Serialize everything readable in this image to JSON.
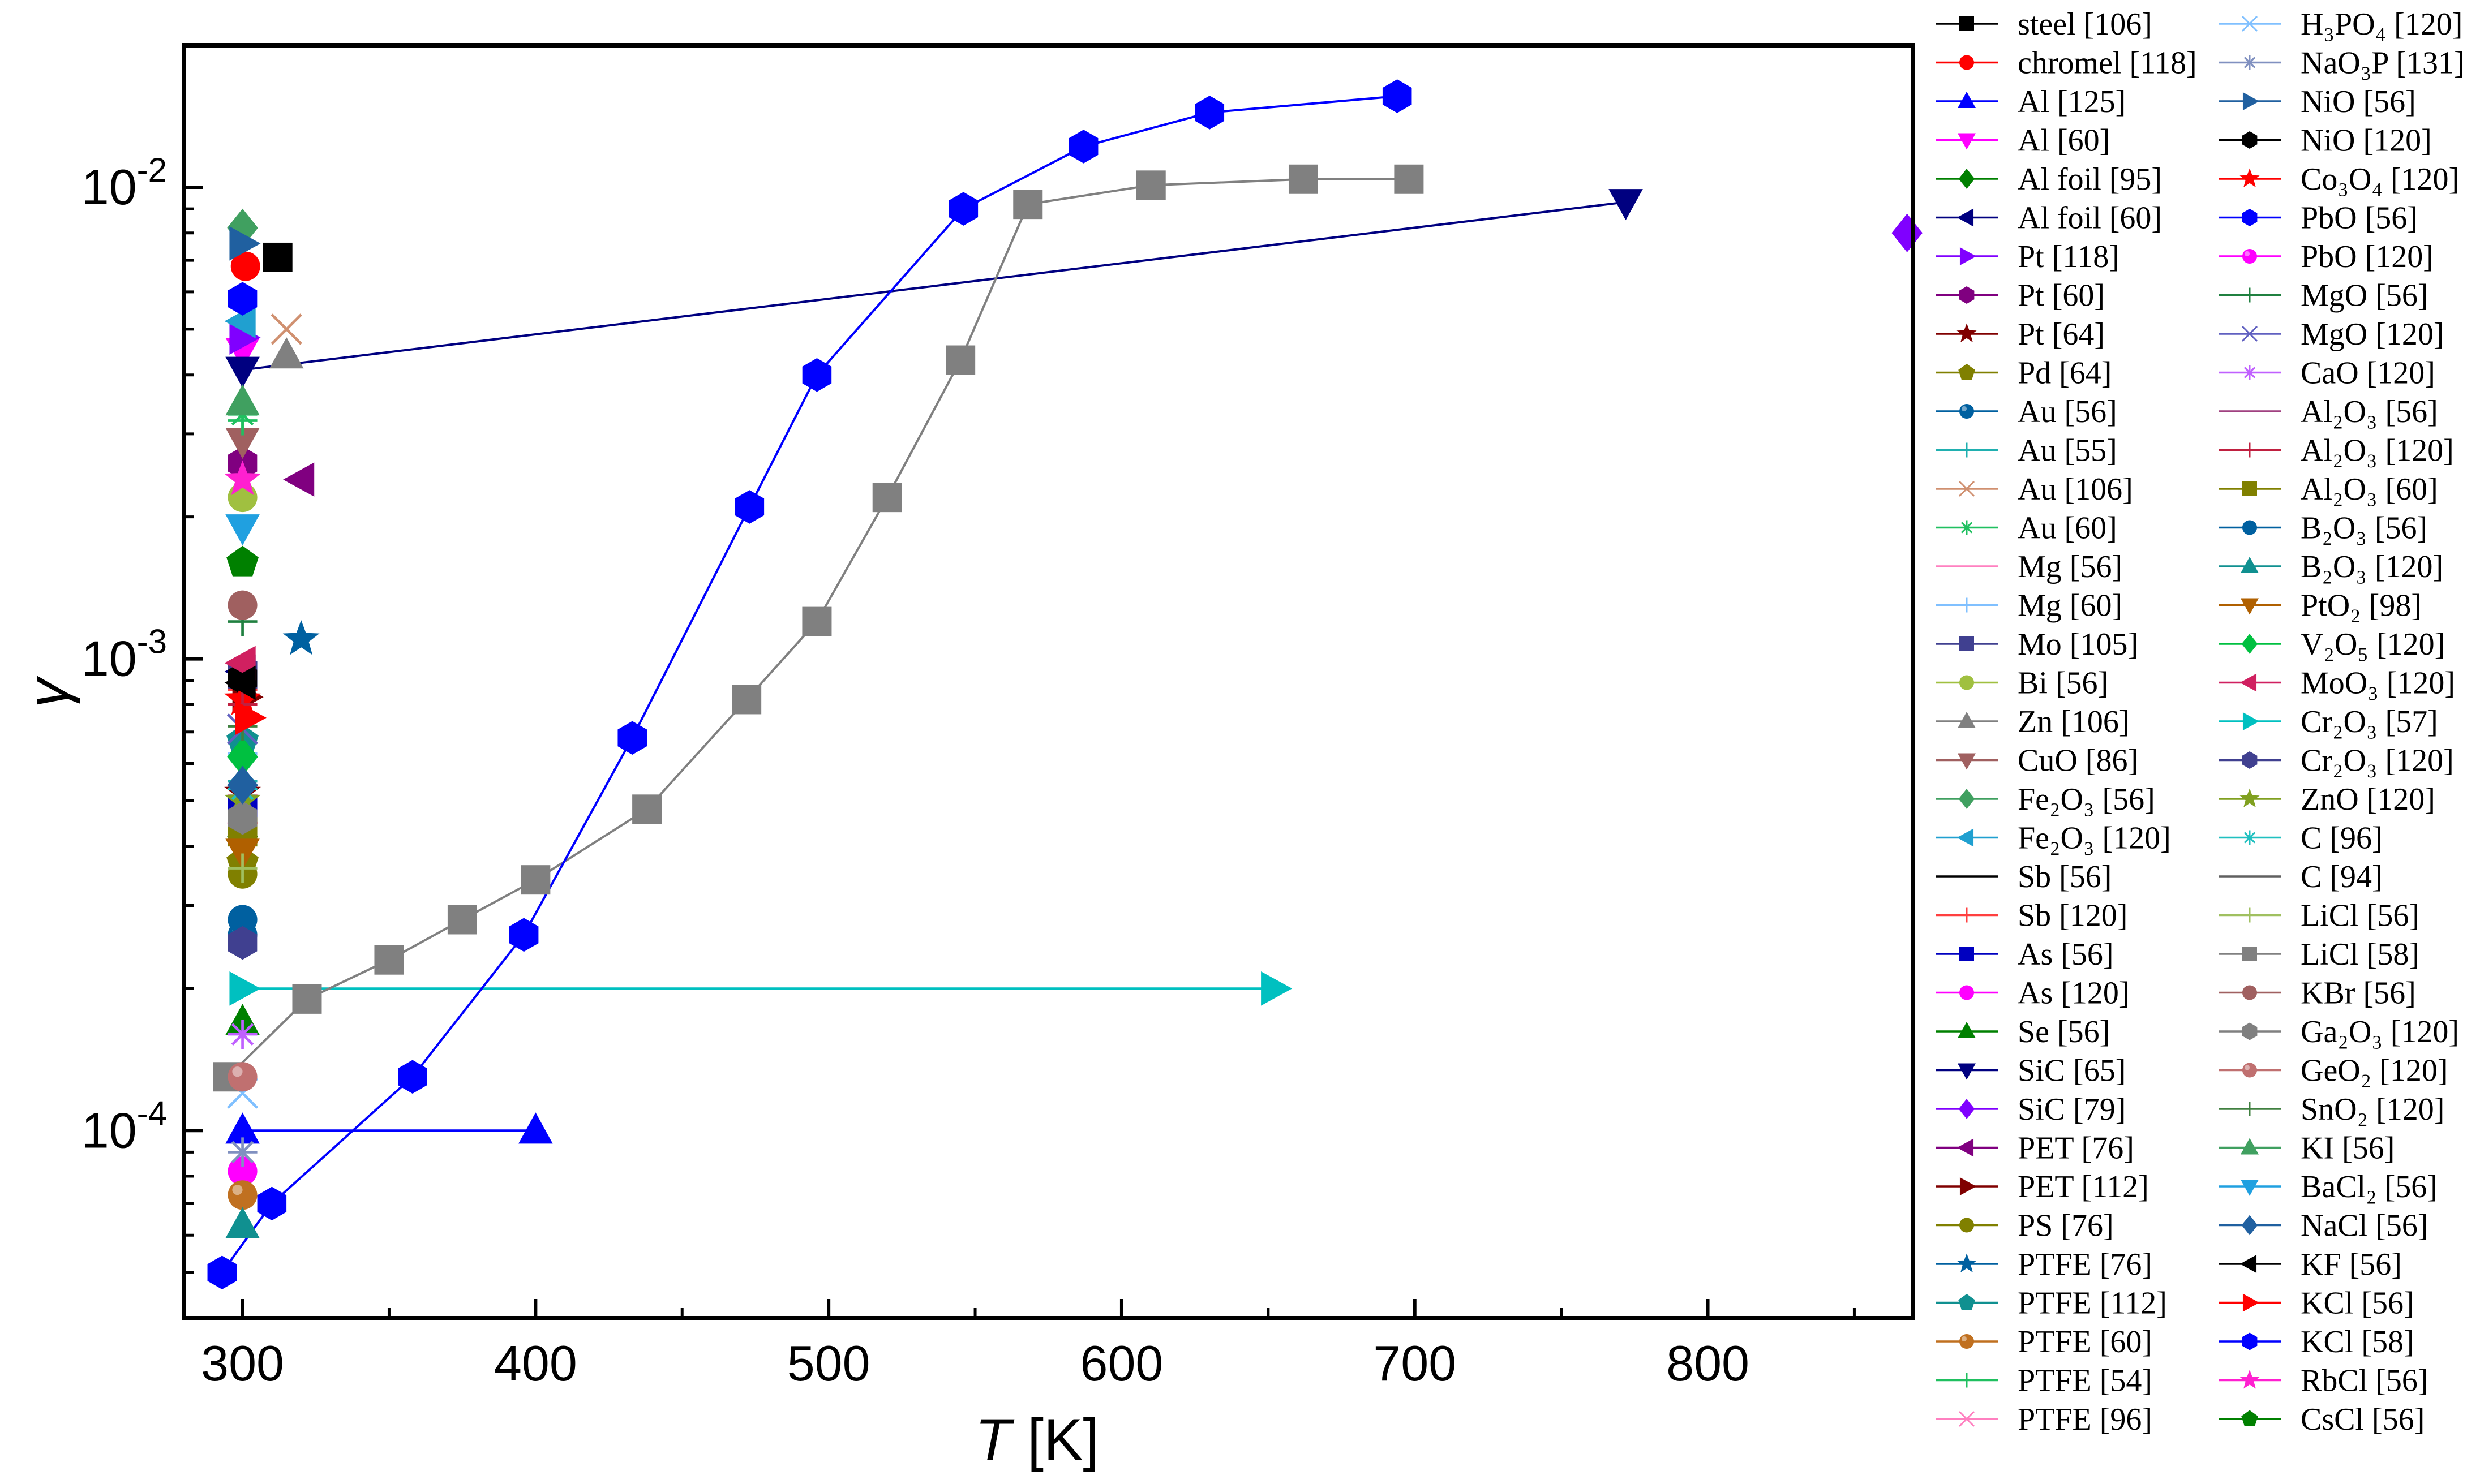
{
  "chart_data": {
    "type": "scatter",
    "title": "",
    "xlabel": "T",
    "xlabel_unit": "[K]",
    "ylabel": "γ",
    "xlim": [
      280,
      870
    ],
    "ylim": [
      4e-05,
      0.02
    ],
    "yscale": "log",
    "x_ticks": [
      300,
      400,
      500,
      600,
      700,
      800
    ],
    "x_tick_labels": [
      "300",
      "400",
      "500",
      "600",
      "700",
      "800"
    ],
    "y_ticks": [
      0.0001,
      0.001,
      0.01
    ],
    "y_tick_labels": [
      {
        "base": "10",
        "exp": "-4"
      },
      {
        "base": "10",
        "exp": "-3"
      },
      {
        "base": "10",
        "exp": "-2"
      }
    ],
    "legend": {
      "placement": "outside-right",
      "columns": 2
    },
    "series": [
      {
        "name": "steel",
        "ref": "[106]",
        "color": "#000000",
        "marker": "square",
        "line": true,
        "points": [
          [
            312,
            0.0071
          ]
        ]
      },
      {
        "name": "chromel",
        "ref": "[118]",
        "color": "#ff0000",
        "marker": "circle",
        "line": true,
        "points": [
          [
            301,
            0.0068
          ]
        ]
      },
      {
        "name": "Al",
        "ref": "[125]",
        "color": "#0000ff",
        "marker": "triangle-up",
        "line": true,
        "points": [
          [
            300,
            0.0001
          ],
          [
            400,
            0.0001
          ]
        ]
      },
      {
        "name": "Al",
        "ref": "[60]",
        "color": "#ff00ff",
        "marker": "triangle-down",
        "line": true,
        "points": [
          [
            300,
            0.0045
          ]
        ]
      },
      {
        "name": "Al foil",
        "ref": "[95]",
        "color": "#008000",
        "marker": "diamond",
        "line": true,
        "points": [
          [
            300,
            0.00042
          ]
        ]
      },
      {
        "name": "Al foil",
        "ref": "[60]",
        "color": "#000080",
        "marker": "triangle-left",
        "line": true,
        "points": [
          [
            300,
            0.00094
          ]
        ]
      },
      {
        "name": "Pt",
        "ref": "[118]",
        "color": "#8000ff",
        "marker": "triangle-right",
        "line": true,
        "points": [
          [
            300,
            0.0048
          ]
        ]
      },
      {
        "name": "Pt",
        "ref": "[60]",
        "color": "#800080",
        "marker": "hexagon",
        "line": true,
        "points": [
          [
            300,
            0.0026
          ]
        ]
      },
      {
        "name": "Pt",
        "ref": "[64]",
        "color": "#800000",
        "marker": "star",
        "line": true,
        "points": [
          [
            300,
            0.00052
          ]
        ]
      },
      {
        "name": "Pd",
        "ref": "[64]",
        "color": "#808000",
        "marker": "pentagon",
        "line": true,
        "points": [
          [
            300,
            0.00037
          ]
        ]
      },
      {
        "name": "Au",
        "ref": "[56]",
        "color": "#0060a0",
        "marker": "sphere",
        "line": true,
        "points": [
          [
            300,
            0.00026
          ]
        ]
      },
      {
        "name": "Au",
        "ref": "[55]",
        "color": "#20b0b0",
        "marker": "plus",
        "line": true,
        "points": [
          [
            300,
            0.00055
          ]
        ]
      },
      {
        "name": "Au",
        "ref": "[106]",
        "color": "#d09070",
        "marker": "cross",
        "line": true,
        "points": [
          [
            315,
            0.005
          ]
        ]
      },
      {
        "name": "Au",
        "ref": "[60]",
        "color": "#20c060",
        "marker": "asterisk",
        "line": true,
        "points": [
          [
            300,
            0.0033
          ]
        ]
      },
      {
        "name": "Mg",
        "ref": "[56]",
        "color": "#ff80c0",
        "marker": "none",
        "line": true,
        "points": [
          [
            300,
            0.00058
          ]
        ]
      },
      {
        "name": "Mg",
        "ref": "[60]",
        "color": "#80c0ff",
        "marker": "plus",
        "line": true,
        "points": [
          [
            300,
            0.00063
          ]
        ]
      },
      {
        "name": "Mo",
        "ref": "[105]",
        "color": "#404090",
        "marker": "square",
        "line": true,
        "points": [
          [
            300,
            0.00092
          ]
        ]
      },
      {
        "name": "Bi",
        "ref": "[56]",
        "color": "#a0c040",
        "marker": "circle",
        "line": true,
        "points": [
          [
            300,
            0.0022
          ]
        ]
      },
      {
        "name": "Zn",
        "ref": "[106]",
        "color": "#808080",
        "marker": "triangle-up",
        "line": true,
        "points": [
          [
            315,
            0.0044
          ]
        ]
      },
      {
        "name": "CuO",
        "ref": "[86]",
        "color": "#a06060",
        "marker": "triangle-down",
        "line": true,
        "points": [
          [
            300,
            0.0029
          ]
        ]
      },
      {
        "name": "Fe₂O₃",
        "ref": "[56]",
        "color": "#40a060",
        "marker": "diamond",
        "line": true,
        "points": [
          [
            300,
            0.0082
          ]
        ]
      },
      {
        "name": "Fe₂O₃",
        "ref": "[120]",
        "color": "#20a0d0",
        "marker": "triangle-left",
        "line": true,
        "points": [
          [
            300,
            0.0052
          ]
        ]
      },
      {
        "name": "Sb",
        "ref": "[56]",
        "color": "#000000",
        "marker": "none",
        "line": true,
        "points": [
          [
            300,
            0.00088
          ]
        ]
      },
      {
        "name": "Sb",
        "ref": "[120]",
        "color": "#ff4040",
        "marker": "plus",
        "line": true,
        "points": [
          [
            300,
            0.00086
          ]
        ]
      },
      {
        "name": "As",
        "ref": "[56]",
        "color": "#0000c0",
        "marker": "square",
        "line": true,
        "points": [
          [
            300,
            0.00048
          ]
        ]
      },
      {
        "name": "As",
        "ref": "[120]",
        "color": "#ff00ff",
        "marker": "circle",
        "line": true,
        "points": [
          [
            300,
            8.2e-05
          ]
        ]
      },
      {
        "name": "Se",
        "ref": "[56]",
        "color": "#008000",
        "marker": "triangle-up",
        "line": true,
        "points": [
          [
            300,
            0.00017
          ]
        ]
      },
      {
        "name": "SiC",
        "ref": "[65]",
        "color": "#000080",
        "marker": "triangle-down",
        "line": true,
        "points": [
          [
            300,
            0.0041
          ],
          [
            772,
            0.0093
          ]
        ]
      },
      {
        "name": "SiC",
        "ref": "[79]",
        "color": "#8000ff",
        "marker": "diamond",
        "line": true,
        "points": [
          [
            868,
            0.008
          ]
        ]
      },
      {
        "name": "PET",
        "ref": "[76]",
        "color": "#800080",
        "marker": "triangle-left",
        "line": true,
        "points": [
          [
            320,
            0.0024
          ]
        ]
      },
      {
        "name": "PET",
        "ref": "[112]",
        "color": "#800000",
        "marker": "triangle-right",
        "line": true,
        "points": [
          [
            301,
            0.00083
          ]
        ]
      },
      {
        "name": "PS",
        "ref": "[76]",
        "color": "#808000",
        "marker": "circle",
        "line": true,
        "points": [
          [
            300,
            0.00035
          ]
        ]
      },
      {
        "name": "PTFE",
        "ref": "[76]",
        "color": "#0060a0",
        "marker": "star",
        "line": true,
        "points": [
          [
            320,
            0.0011
          ]
        ]
      },
      {
        "name": "PTFE",
        "ref": "[112]",
        "color": "#109090",
        "marker": "pentagon",
        "line": true,
        "points": [
          [
            300,
            0.00067
          ]
        ]
      },
      {
        "name": "PTFE",
        "ref": "[60]",
        "color": "#c07020",
        "marker": "sphere",
        "line": true,
        "points": [
          [
            300,
            7.3e-05
          ]
        ]
      },
      {
        "name": "PTFE",
        "ref": "[54]",
        "color": "#20c060",
        "marker": "plus",
        "line": true,
        "points": [
          [
            300,
            0.0032
          ]
        ]
      },
      {
        "name": "PTFE",
        "ref": "[96]",
        "color": "#ff80c0",
        "marker": "cross",
        "line": true,
        "points": [
          [
            300,
            0.00048
          ]
        ]
      },
      {
        "name": "H₃PO₄",
        "ref": "[120]",
        "color": "#80c0ff",
        "marker": "cross",
        "line": true,
        "points": [
          [
            300,
            0.00012
          ]
        ]
      },
      {
        "name": "NaO₃P",
        "ref": "[131]",
        "color": "#8090c0",
        "marker": "asterisk",
        "line": true,
        "points": [
          [
            300,
            9e-05
          ]
        ]
      },
      {
        "name": "NiO",
        "ref": "[56]",
        "color": "#2060a0",
        "marker": "triangle-right",
        "line": true,
        "points": [
          [
            300,
            0.0076
          ]
        ]
      },
      {
        "name": "NiO",
        "ref": "[120]",
        "color": "#000000",
        "marker": "hexagon",
        "line": true,
        "points": [
          [
            300,
            0.00091
          ]
        ]
      },
      {
        "name": "Co₃O₄",
        "ref": "[120]",
        "color": "#ff0000",
        "marker": "star",
        "line": true,
        "points": [
          [
            300,
            0.00082
          ]
        ]
      },
      {
        "name": "PbO",
        "ref": "[56]",
        "color": "#0000ff",
        "marker": "hexagon",
        "line": true,
        "points": [
          [
            300,
            0.0058
          ]
        ]
      },
      {
        "name": "PbO",
        "ref": "[120]",
        "color": "#ff00ff",
        "marker": "sphere",
        "line": true,
        "points": [
          [
            300,
            0.00045
          ]
        ]
      },
      {
        "name": "MgO",
        "ref": "[56]",
        "color": "#208040",
        "marker": "plus",
        "line": true,
        "points": [
          [
            300,
            0.0012
          ]
        ]
      },
      {
        "name": "MgO",
        "ref": "[120]",
        "color": "#6060c0",
        "marker": "cross",
        "line": true,
        "points": [
          [
            300,
            0.00071
          ]
        ]
      },
      {
        "name": "CaO",
        "ref": "[120]",
        "color": "#c060ff",
        "marker": "asterisk",
        "line": true,
        "points": [
          [
            300,
            0.00016
          ]
        ]
      },
      {
        "name": "Al₂O₃",
        "ref": "[56]",
        "color": "#a04080",
        "marker": "none",
        "line": true,
        "points": [
          [
            300,
            0.00075
          ]
        ]
      },
      {
        "name": "Al₂O₃",
        "ref": "[120]",
        "color": "#c02040",
        "marker": "plus",
        "line": true,
        "points": [
          [
            300,
            0.0008
          ]
        ]
      },
      {
        "name": "Al₂O₃",
        "ref": "[60]",
        "color": "#808000",
        "marker": "square",
        "line": true,
        "points": [
          [
            300,
            0.00043
          ]
        ]
      },
      {
        "name": "B₂O₃",
        "ref": "[56]",
        "color": "#0060a0",
        "marker": "circle",
        "line": true,
        "points": [
          [
            300,
            0.00028
          ]
        ]
      },
      {
        "name": "B₂O₃",
        "ref": "[120]",
        "color": "#109090",
        "marker": "triangle-up",
        "line": true,
        "points": [
          [
            300,
            6.3e-05
          ]
        ]
      },
      {
        "name": "PtO₂",
        "ref": "[98]",
        "color": "#b06000",
        "marker": "triangle-down",
        "line": true,
        "points": [
          [
            300,
            0.00039
          ]
        ]
      },
      {
        "name": "V₂O₅",
        "ref": "[120]",
        "color": "#00c040",
        "marker": "diamond",
        "line": true,
        "points": [
          [
            300,
            0.00062
          ]
        ]
      },
      {
        "name": "MoO₃",
        "ref": "[120]",
        "color": "#d02060",
        "marker": "triangle-left",
        "line": true,
        "points": [
          [
            300,
            0.00098
          ]
        ]
      },
      {
        "name": "Cr₂O₃",
        "ref": "[57]",
        "color": "#00c0c0",
        "marker": "triangle-right",
        "line": true,
        "points": [
          [
            300,
            0.0002
          ],
          [
            652,
            0.0002
          ]
        ]
      },
      {
        "name": "Cr₂O₃",
        "ref": "[120]",
        "color": "#404090",
        "marker": "hexagon",
        "line": true,
        "points": [
          [
            300,
            0.00025
          ]
        ]
      },
      {
        "name": "ZnO",
        "ref": "[120]",
        "color": "#80a020",
        "marker": "star",
        "line": true,
        "points": [
          [
            300,
            0.0005
          ]
        ]
      },
      {
        "name": "C",
        "ref": "[96]",
        "color": "#20c0c0",
        "marker": "asterisk",
        "line": true,
        "points": [
          [
            300,
            0.00053
          ]
        ]
      },
      {
        "name": "C",
        "ref": "[94]",
        "color": "#606060",
        "marker": "none",
        "line": true,
        "points": [
          [
            300,
            0.0006
          ]
        ]
      },
      {
        "name": "LiCl",
        "ref": "[56]",
        "color": "#a0c060",
        "marker": "plus",
        "line": true,
        "points": [
          [
            300,
            0.00036
          ]
        ]
      },
      {
        "name": "LiCl",
        "ref": "[58]",
        "color": "#808080",
        "marker": "square",
        "line": true,
        "points": [
          [
            295,
            0.00013
          ],
          [
            322,
            0.00019
          ],
          [
            350,
            0.00023
          ],
          [
            375,
            0.00028
          ],
          [
            400,
            0.00034
          ],
          [
            438,
            0.00048
          ],
          [
            472,
            0.00082
          ],
          [
            496,
            0.0012
          ],
          [
            520,
            0.0022
          ],
          [
            545,
            0.0043
          ],
          [
            568,
            0.0092
          ],
          [
            610,
            0.0101
          ],
          [
            662,
            0.0104
          ],
          [
            698,
            0.0104
          ]
        ]
      },
      {
        "name": "KBr",
        "ref": "[56]",
        "color": "#a06060",
        "marker": "circle",
        "line": true,
        "points": [
          [
            300,
            0.0013
          ]
        ]
      },
      {
        "name": "Ga₂O₃",
        "ref": "[120]",
        "color": "#808080",
        "marker": "hexagon",
        "line": true,
        "points": [
          [
            300,
            0.00046
          ]
        ]
      },
      {
        "name": "GeO₂",
        "ref": "[120]",
        "color": "#c07070",
        "marker": "sphere",
        "line": true,
        "points": [
          [
            300,
            0.00013
          ]
        ]
      },
      {
        "name": "SnO₂",
        "ref": "[120]",
        "color": "#408040",
        "marker": "plus",
        "line": true,
        "points": [
          [
            300,
            0.00072
          ]
        ]
      },
      {
        "name": "KI",
        "ref": "[56]",
        "color": "#40a060",
        "marker": "triangle-up",
        "line": true,
        "points": [
          [
            300,
            0.0035
          ]
        ]
      },
      {
        "name": "BaCl₂",
        "ref": "[56]",
        "color": "#20a0e0",
        "marker": "triangle-down",
        "line": true,
        "points": [
          [
            300,
            0.0019
          ]
        ]
      },
      {
        "name": "NaCl",
        "ref": "[56]",
        "color": "#2060a0",
        "marker": "diamond",
        "line": true,
        "points": [
          [
            300,
            0.00054
          ]
        ]
      },
      {
        "name": "KF",
        "ref": "[56]",
        "color": "#000000",
        "marker": "triangle-left",
        "line": true,
        "points": [
          [
            300,
            0.00089
          ]
        ]
      },
      {
        "name": "KCl",
        "ref": "[56]",
        "color": "#ff0000",
        "marker": "triangle-right",
        "line": true,
        "points": [
          [
            302,
            0.00075
          ]
        ]
      },
      {
        "name": "KCl",
        "ref": "[58]",
        "color": "#0000ff",
        "marker": "hexagon",
        "line": true,
        "points": [
          [
            293,
            5e-05
          ],
          [
            310,
            7e-05
          ],
          [
            358,
            0.00013
          ],
          [
            396,
            0.00026
          ],
          [
            433,
            0.00068
          ],
          [
            473,
            0.0021
          ],
          [
            496,
            0.004
          ],
          [
            546,
            0.009
          ],
          [
            587,
            0.0122
          ],
          [
            630,
            0.0144
          ],
          [
            694,
            0.0156
          ]
        ]
      },
      {
        "name": "RbCl",
        "ref": "[56]",
        "color": "#ff20d0",
        "marker": "star",
        "line": true,
        "points": [
          [
            300,
            0.0024
          ]
        ]
      },
      {
        "name": "CsCl",
        "ref": "[56]",
        "color": "#008000",
        "marker": "pentagon",
        "line": true,
        "points": [
          [
            300,
            0.0016
          ]
        ]
      }
    ]
  }
}
